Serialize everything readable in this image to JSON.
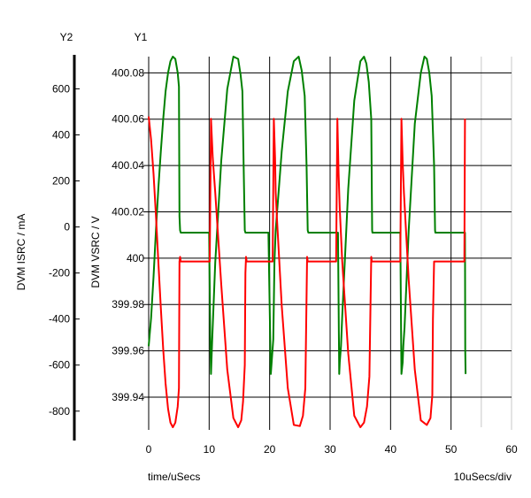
{
  "chart_data": {
    "type": "line",
    "xlabel": "time/uSecs",
    "x_scale_label": "10uSecs/div",
    "xlim": [
      0,
      60
    ],
    "x_ticks": [
      0,
      10,
      20,
      30,
      40,
      50,
      60
    ],
    "y1": {
      "axis_name": "Y1",
      "label": "DVM VSRC / V",
      "ylim": [
        399.927,
        400.087
      ],
      "ticks": [
        399.94,
        399.96,
        399.98,
        400,
        400.02,
        400.04,
        400.06,
        400.08
      ],
      "tick_labels": [
        "399.94",
        "399.96",
        "399.98",
        "400",
        "400.02",
        "400.04",
        "400.06",
        "400.08"
      ]
    },
    "y2": {
      "axis_name": "Y2",
      "label": "DVM ISRC / mA",
      "ylim": [
        -870,
        740
      ],
      "ticks": [
        -800,
        -600,
        -400,
        -200,
        0,
        200,
        400,
        600
      ],
      "tick_labels": [
        "-800",
        "-600",
        "-400",
        "-200",
        "0",
        "200",
        "400",
        "600"
      ]
    },
    "grid": true,
    "series": [
      {
        "color": "#008000",
        "axis": "y1",
        "x": [
          0,
          0.4,
          0.8,
          1.2,
          1.6,
          2.0,
          2.4,
          2.8,
          3.2,
          3.6,
          4.0,
          4.4,
          4.8,
          5.0,
          5.1,
          5.2,
          5.3,
          9.0,
          9.2,
          10.0,
          10.2,
          10.3,
          10.5,
          11.0,
          12.0,
          13.0,
          14.0,
          14.8,
          15.2,
          15.5,
          15.7,
          15.9,
          16.0,
          19.6,
          19.8,
          20.2,
          20.6,
          20.8,
          21.0,
          22.0,
          23.0,
          24.0,
          24.8,
          25.3,
          25.8,
          26.1,
          26.3,
          26.4,
          31.0,
          31.3,
          31.5,
          31.6,
          31.8,
          32.0,
          33.0,
          34.0,
          35.0,
          35.6,
          36.0,
          36.4,
          36.8,
          36.95,
          37.0,
          41.4,
          41.6,
          41.8,
          42.0,
          42.1,
          42.3,
          43.0,
          44.0,
          45.0,
          45.6,
          46.0,
          46.4,
          46.8,
          47.2,
          47.35,
          47.4,
          52.3,
          52.35,
          52.4
        ],
        "y": [
          399.962,
          399.974,
          399.992,
          400.012,
          400.03,
          400.046,
          400.06,
          400.072,
          400.08,
          400.085,
          400.087,
          400.086,
          400.08,
          400.074,
          400.018,
          400.012,
          400.011,
          400.011,
          400.011,
          400.011,
          399.963,
          399.95,
          399.965,
          399.998,
          400.042,
          400.073,
          400.087,
          400.086,
          400.079,
          400.072,
          400.04,
          400.012,
          400.011,
          400.011,
          400.011,
          399.95,
          399.965,
          399.998,
          400.012,
          400.046,
          400.072,
          400.085,
          400.087,
          400.081,
          400.07,
          400.04,
          400.012,
          400.011,
          400.011,
          400.011,
          399.95,
          399.955,
          399.962,
          399.975,
          400.03,
          400.068,
          400.085,
          400.087,
          400.084,
          400.076,
          400.06,
          400.012,
          400.011,
          400.011,
          400.011,
          399.95,
          399.955,
          399.962,
          399.97,
          400.012,
          400.058,
          400.08,
          400.087,
          400.086,
          400.08,
          400.07,
          400.04,
          400.012,
          400.011,
          400.011,
          399.96,
          399.95
        ]
      },
      {
        "color": "#ff0000",
        "axis": "y2",
        "x": [
          0,
          0.4,
          0.8,
          1.2,
          1.6,
          2.0,
          2.4,
          2.8,
          3.2,
          3.6,
          4.0,
          4.4,
          4.8,
          5.0,
          5.1,
          5.2,
          5.3,
          9.8,
          10.1,
          10.3,
          10.6,
          11.0,
          12.0,
          13.0,
          14.0,
          14.8,
          15.3,
          15.6,
          15.9,
          16.0,
          16.1,
          16.2,
          20.5,
          20.7,
          20.9,
          21.0,
          21.2,
          22.0,
          23.0,
          24.0,
          25.0,
          25.5,
          25.9,
          26.1,
          26.2,
          26.3,
          31.0,
          31.2,
          31.3,
          31.4,
          31.6,
          32.0,
          33.0,
          34.0,
          35.0,
          35.6,
          36.1,
          36.5,
          36.7,
          36.8,
          36.9,
          41.6,
          41.8,
          42.0,
          42.2,
          43.0,
          44.0,
          45.0,
          46.0,
          46.6,
          46.9,
          47.0,
          47.2,
          47.3,
          52.2,
          52.3
        ],
        "y": [
          480,
          380,
          230,
          50,
          -150,
          -350,
          -530,
          -680,
          -790,
          -850,
          -870,
          -850,
          -780,
          -700,
          -150,
          -130,
          -150,
          -150,
          -150,
          470,
          300,
          150,
          -250,
          -620,
          -830,
          -870,
          -840,
          -760,
          -600,
          -200,
          -130,
          -150,
          -150,
          470,
          300,
          150,
          40,
          -340,
          -700,
          -860,
          -865,
          -820,
          -700,
          -300,
          -130,
          -150,
          -150,
          470,
          350,
          230,
          80,
          -150,
          -550,
          -820,
          -870,
          -850,
          -780,
          -650,
          -300,
          -130,
          -150,
          -150,
          470,
          280,
          150,
          -230,
          -620,
          -840,
          -860,
          -830,
          -730,
          -400,
          -150,
          -150,
          -150,
          470
        ]
      }
    ]
  }
}
